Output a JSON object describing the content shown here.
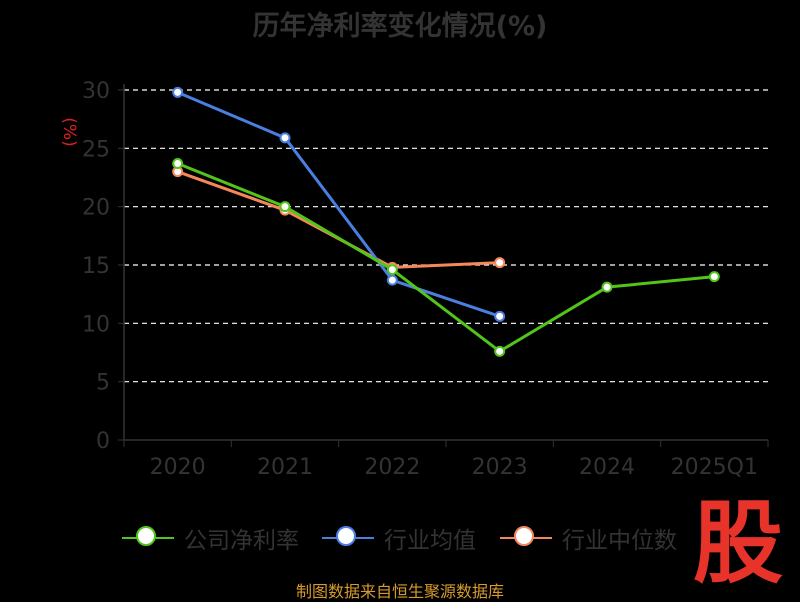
{
  "title": "历年净利率变化情况(%)",
  "source": "制图数据来自恒生聚源数据库",
  "logo_text": "股",
  "colors": {
    "company": "#52c41a",
    "industry_avg": "#4a7fe0",
    "industry_median": "#f5875a",
    "grid": "#ffffff",
    "axis": "#333333",
    "ylabel": "#e02020"
  },
  "chart_data": {
    "type": "line",
    "title": "历年净利率变化情况(%)",
    "ylabel": "(%)",
    "xlabel": "",
    "categories": [
      "2020",
      "2021",
      "2022",
      "2023",
      "2024",
      "2025Q1"
    ],
    "ylim": [
      0,
      30
    ],
    "yticks": [
      0,
      5,
      10,
      15,
      20,
      25,
      30
    ],
    "grid": true,
    "legend_position": "bottom",
    "series": [
      {
        "name": "公司净利率",
        "values": [
          23.7,
          20.0,
          14.6,
          7.6,
          13.1,
          14.0
        ]
      },
      {
        "name": "行业均值",
        "values": [
          29.8,
          25.9,
          13.7,
          10.6,
          null,
          null
        ]
      },
      {
        "name": "行业中位数",
        "values": [
          23.0,
          19.7,
          14.8,
          15.2,
          null,
          null
        ]
      }
    ]
  }
}
